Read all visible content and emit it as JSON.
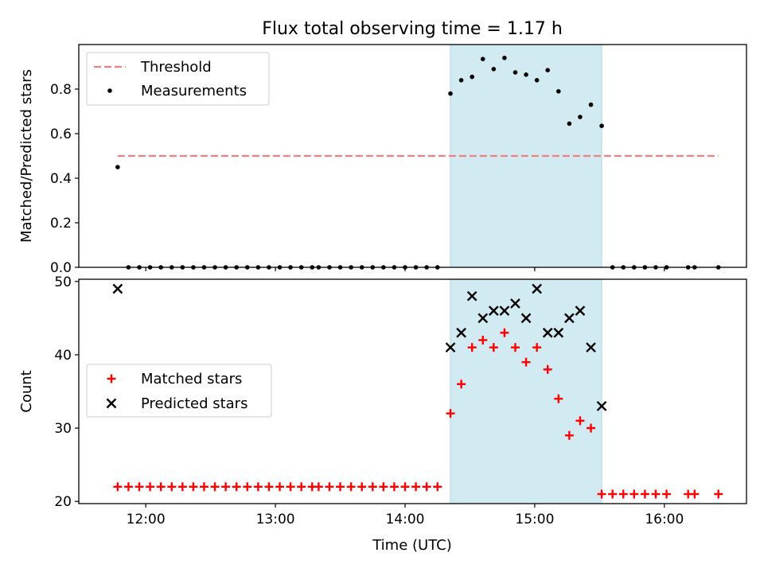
{
  "chart_data": {
    "title": "Flux total observing time = 1.17 h",
    "shared_x": {
      "label": "Time (UTC)",
      "range": [
        "11:29",
        "16:38"
      ],
      "ticks": [
        "12:00",
        "13:00",
        "14:00",
        "15:00",
        "16:00"
      ]
    },
    "observing_window": {
      "start": "14:21",
      "end": "15:31",
      "color": "#add8e6"
    },
    "panels": [
      {
        "type": "scatter",
        "ylabel": "Matched/Predicted stars",
        "ylim": [
          0,
          1.0
        ],
        "yticks": [
          "0.0",
          "0.2",
          "0.4",
          "0.6",
          "0.8"
        ],
        "legend_position": "upper-left",
        "threshold": {
          "name": "Threshold",
          "value": 0.5,
          "x_range": [
            "11:47",
            "16:25"
          ],
          "color": "#f08080"
        },
        "measurements": {
          "name": "Measurements",
          "color": "#000000",
          "points": [
            [
              "11:47",
              0.45
            ],
            [
              "11:52",
              0
            ],
            [
              "11:57",
              0
            ],
            [
              "12:02",
              0
            ],
            [
              "12:07",
              0
            ],
            [
              "12:12",
              0
            ],
            [
              "12:17",
              0
            ],
            [
              "12:22",
              0
            ],
            [
              "12:27",
              0
            ],
            [
              "12:32",
              0
            ],
            [
              "12:37",
              0
            ],
            [
              "12:42",
              0
            ],
            [
              "12:47",
              0
            ],
            [
              "12:52",
              0
            ],
            [
              "12:57",
              0
            ],
            [
              "13:02",
              0
            ],
            [
              "13:07",
              0
            ],
            [
              "13:12",
              0
            ],
            [
              "13:17",
              0
            ],
            [
              "13:20",
              0
            ],
            [
              "13:25",
              0
            ],
            [
              "13:30",
              0
            ],
            [
              "13:35",
              0
            ],
            [
              "13:40",
              0
            ],
            [
              "13:45",
              0
            ],
            [
              "13:50",
              0
            ],
            [
              "13:55",
              0
            ],
            [
              "14:00",
              0
            ],
            [
              "14:05",
              0
            ],
            [
              "14:10",
              0
            ],
            [
              "14:15",
              0
            ],
            [
              "14:21",
              0.78
            ],
            [
              "14:26",
              0.84
            ],
            [
              "14:31",
              0.855
            ],
            [
              "14:36",
              0.935
            ],
            [
              "14:41",
              0.89
            ],
            [
              "14:46",
              0.94
            ],
            [
              "14:51",
              0.875
            ],
            [
              "14:56",
              0.865
            ],
            [
              "15:01",
              0.84
            ],
            [
              "15:06",
              0.885
            ],
            [
              "15:11",
              0.79
            ],
            [
              "15:16",
              0.645
            ],
            [
              "15:21",
              0.675
            ],
            [
              "15:26",
              0.73
            ],
            [
              "15:31",
              0.635
            ],
            [
              "15:36",
              0
            ],
            [
              "15:41",
              0
            ],
            [
              "15:46",
              0
            ],
            [
              "15:51",
              0
            ],
            [
              "15:56",
              0
            ],
            [
              "16:01",
              0
            ],
            [
              "16:11",
              0
            ],
            [
              "16:14",
              0
            ],
            [
              "16:25",
              0
            ]
          ]
        }
      },
      {
        "type": "scatter",
        "ylabel": "Count",
        "ylim": [
          19.7,
          50.3
        ],
        "yticks": [
          "20",
          "30",
          "40",
          "50"
        ],
        "legend_position": "center-left",
        "series": [
          {
            "name": "Matched stars",
            "marker": "+",
            "color": "#ff0000",
            "points": [
              [
                "11:47",
                22
              ],
              [
                "11:52",
                22
              ],
              [
                "11:57",
                22
              ],
              [
                "12:02",
                22
              ],
              [
                "12:07",
                22
              ],
              [
                "12:12",
                22
              ],
              [
                "12:17",
                22
              ],
              [
                "12:22",
                22
              ],
              [
                "12:27",
                22
              ],
              [
                "12:32",
                22
              ],
              [
                "12:37",
                22
              ],
              [
                "12:42",
                22
              ],
              [
                "12:47",
                22
              ],
              [
                "12:52",
                22
              ],
              [
                "12:57",
                22
              ],
              [
                "13:02",
                22
              ],
              [
                "13:07",
                22
              ],
              [
                "13:12",
                22
              ],
              [
                "13:17",
                22
              ],
              [
                "13:20",
                22
              ],
              [
                "13:25",
                22
              ],
              [
                "13:30",
                22
              ],
              [
                "13:35",
                22
              ],
              [
                "13:40",
                22
              ],
              [
                "13:45",
                22
              ],
              [
                "13:50",
                22
              ],
              [
                "13:55",
                22
              ],
              [
                "14:00",
                22
              ],
              [
                "14:05",
                22
              ],
              [
                "14:10",
                22
              ],
              [
                "14:15",
                22
              ],
              [
                "14:21",
                32
              ],
              [
                "14:26",
                36
              ],
              [
                "14:31",
                41
              ],
              [
                "14:36",
                42
              ],
              [
                "14:41",
                41
              ],
              [
                "14:46",
                43
              ],
              [
                "14:51",
                41
              ],
              [
                "14:56",
                39
              ],
              [
                "15:01",
                41
              ],
              [
                "15:06",
                38
              ],
              [
                "15:11",
                34
              ],
              [
                "15:16",
                29
              ],
              [
                "15:21",
                31
              ],
              [
                "15:26",
                30
              ],
              [
                "15:31",
                21
              ],
              [
                "15:36",
                21
              ],
              [
                "15:41",
                21
              ],
              [
                "15:46",
                21
              ],
              [
                "15:51",
                21
              ],
              [
                "15:56",
                21
              ],
              [
                "16:01",
                21
              ],
              [
                "16:11",
                21
              ],
              [
                "16:14",
                21
              ],
              [
                "16:25",
                21
              ]
            ]
          },
          {
            "name": "Predicted stars",
            "marker": "x",
            "color": "#000000",
            "points": [
              [
                "11:47",
                49
              ],
              [
                "14:21",
                41
              ],
              [
                "14:26",
                43
              ],
              [
                "14:31",
                48
              ],
              [
                "14:36",
                45
              ],
              [
                "14:41",
                46
              ],
              [
                "14:46",
                46
              ],
              [
                "14:51",
                47
              ],
              [
                "14:56",
                45
              ],
              [
                "15:01",
                49
              ],
              [
                "15:06",
                43
              ],
              [
                "15:11",
                43
              ],
              [
                "15:16",
                45
              ],
              [
                "15:21",
                46
              ],
              [
                "15:26",
                41
              ],
              [
                "15:31",
                33
              ]
            ]
          }
        ]
      }
    ]
  }
}
